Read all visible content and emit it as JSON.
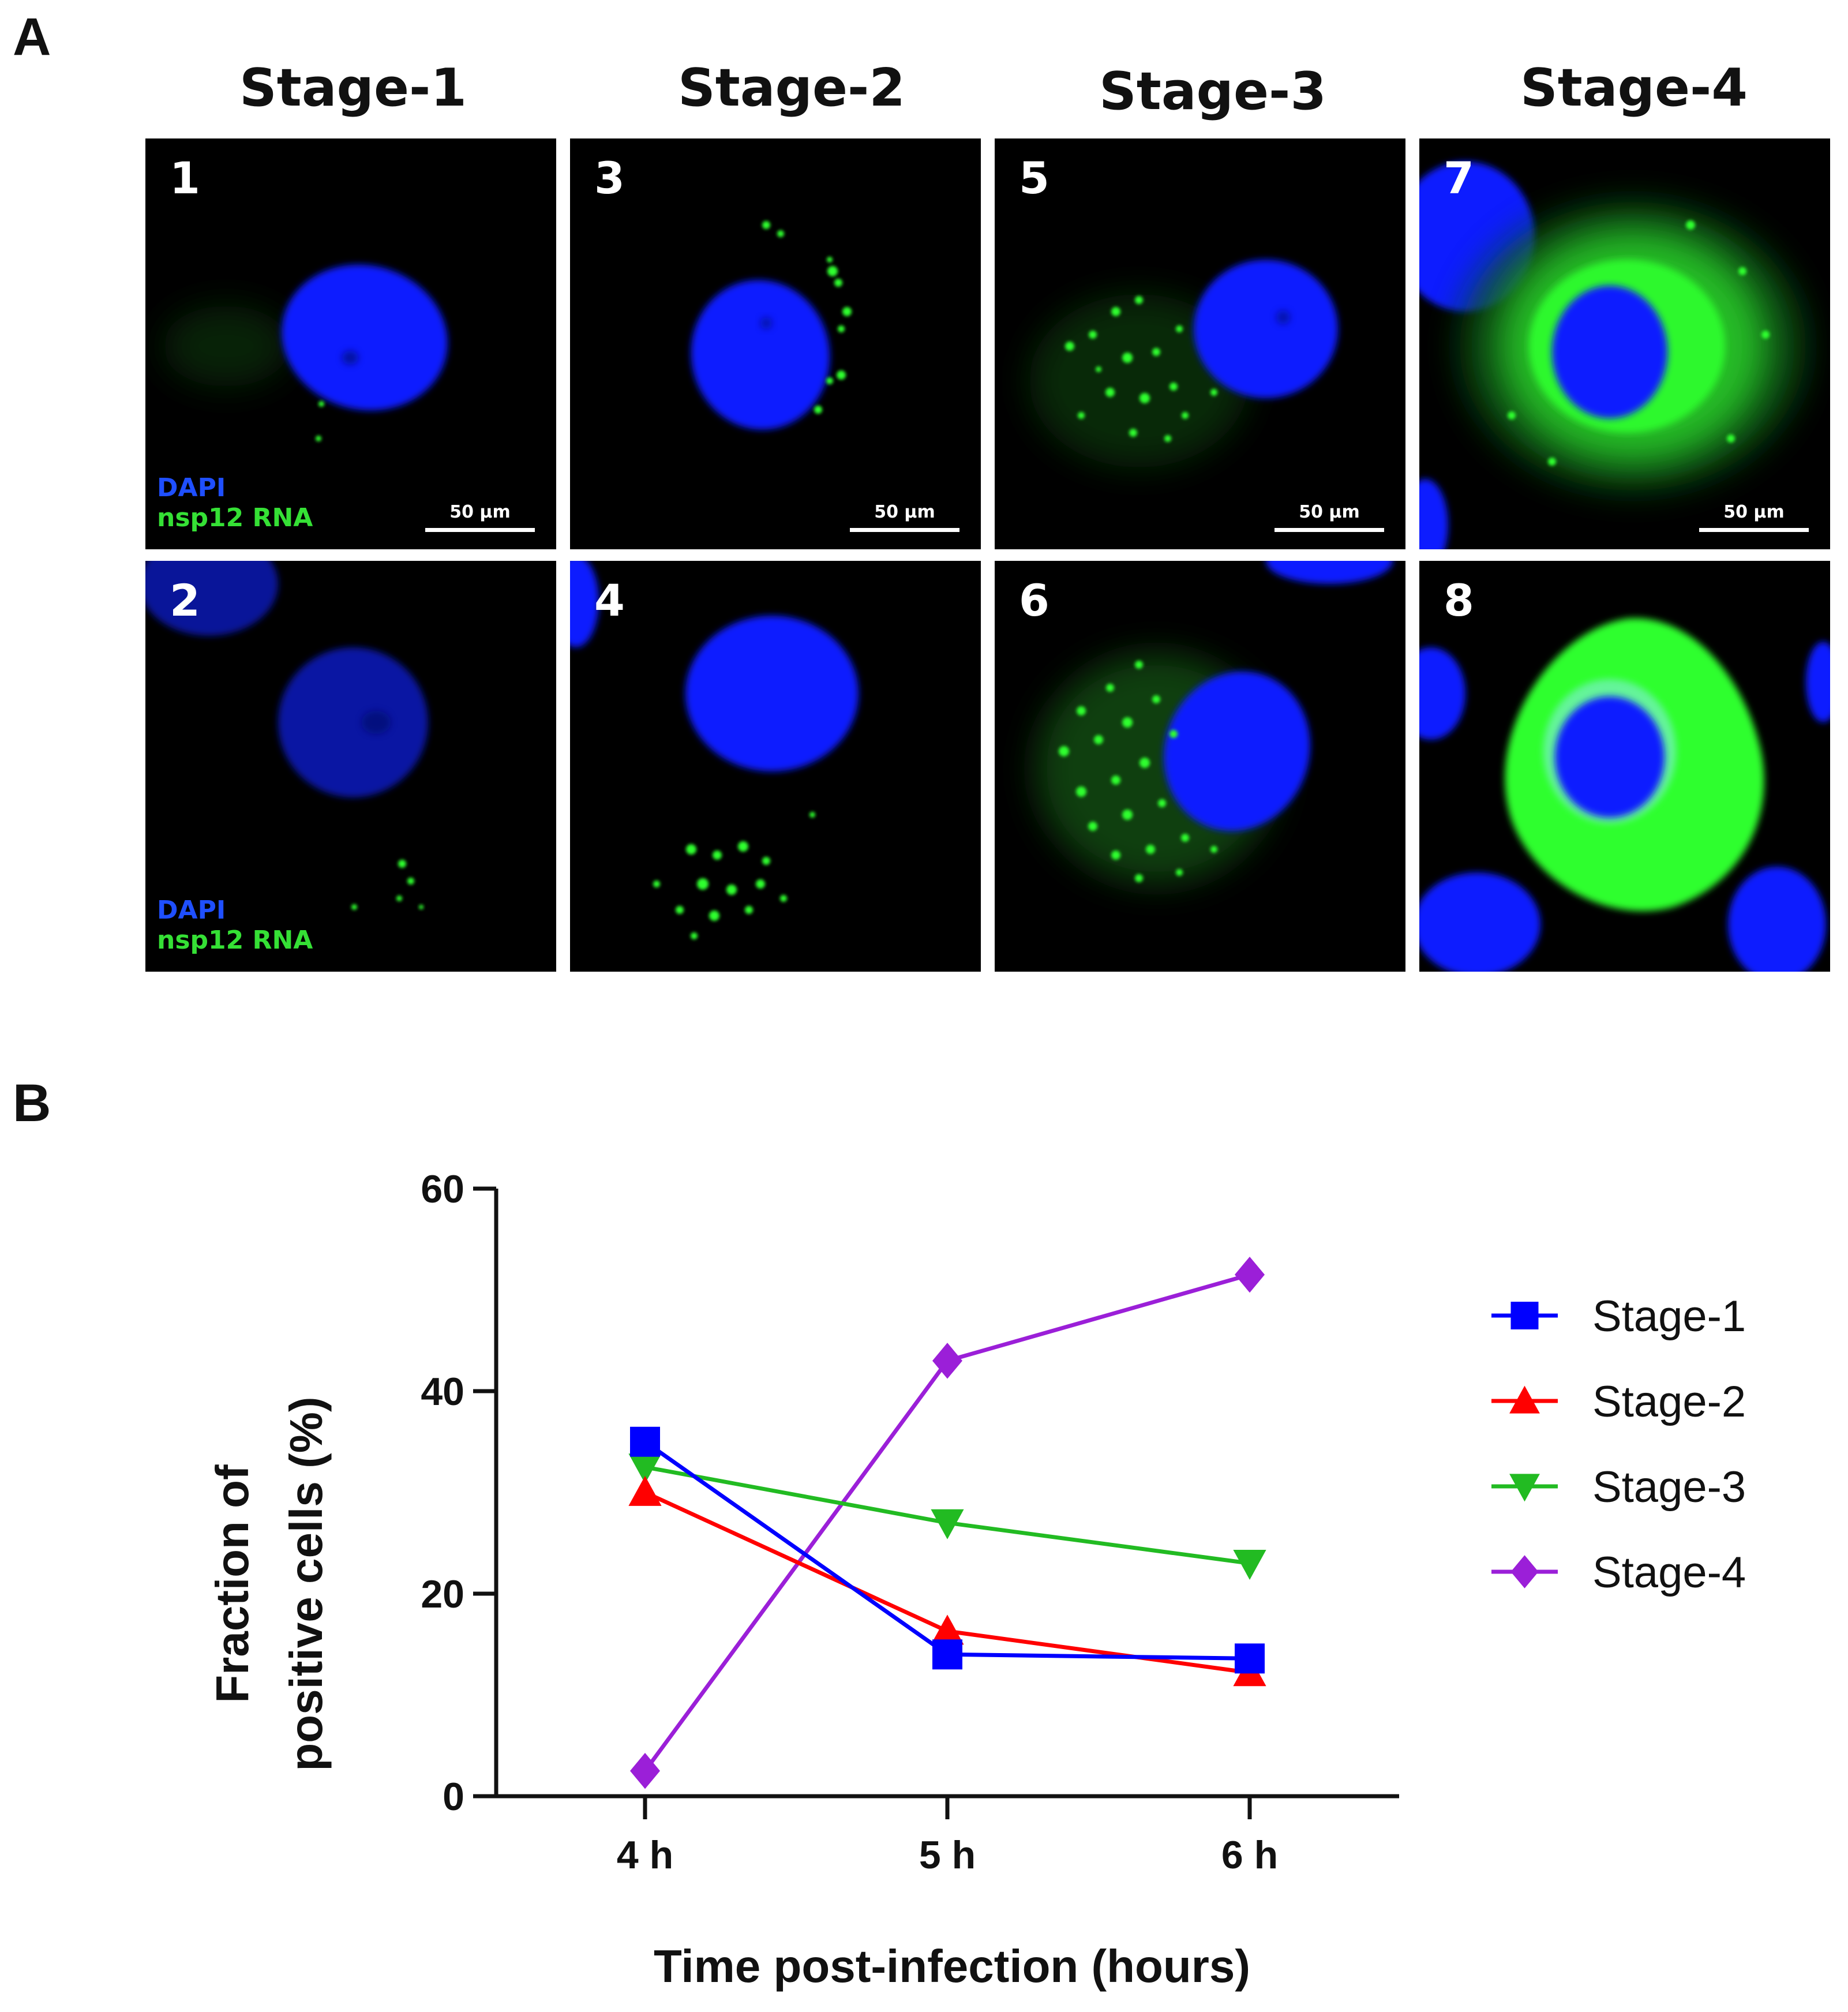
{
  "panel_a": {
    "letter": "A",
    "stage_titles": [
      "Stage-1",
      "Stage-2",
      "Stage-3",
      "Stage-4"
    ],
    "tiles": [
      {
        "number": "1",
        "legend_dapi": "DAPI",
        "legend_rna": "nsp12 RNA",
        "scale": "50 µm"
      },
      {
        "number": "2",
        "legend_dapi": "DAPI",
        "legend_rna": "nsp12 RNA"
      },
      {
        "number": "3",
        "scale": "50 µm"
      },
      {
        "number": "4"
      },
      {
        "number": "5",
        "scale": "50 µm"
      },
      {
        "number": "6"
      },
      {
        "number": "7",
        "scale": "50 µm"
      },
      {
        "number": "8"
      }
    ],
    "colors": {
      "dapi": "#0a1fff",
      "rna": "#2dff2d",
      "background": "#000000"
    }
  },
  "panel_b": {
    "letter": "B"
  },
  "chart_data": {
    "type": "line",
    "categories": [
      "4 h",
      "5 h",
      "6 h"
    ],
    "xlabel": "Time post-infection (hours)",
    "ylabel_line1": "Fraction of",
    "ylabel_line2": "positive cells (%)",
    "ylim": [
      0,
      60
    ],
    "yticks": [
      0,
      20,
      40,
      60
    ],
    "grid": false,
    "legend_position": "right",
    "series": [
      {
        "name": "Stage-1",
        "values": [
          35.0,
          14.0,
          13.6
        ],
        "color": "#0000ff",
        "marker": "square"
      },
      {
        "name": "Stage-2",
        "values": [
          30.0,
          16.3,
          12.2
        ],
        "color": "#ff0000",
        "marker": "triangle-up"
      },
      {
        "name": "Stage-3",
        "values": [
          32.5,
          27.0,
          23.0
        ],
        "color": "#22bb22",
        "marker": "triangle-down"
      },
      {
        "name": "Stage-4",
        "values": [
          2.5,
          43.0,
          51.5
        ],
        "color": "#9b1fd8",
        "marker": "diamond"
      }
    ]
  }
}
